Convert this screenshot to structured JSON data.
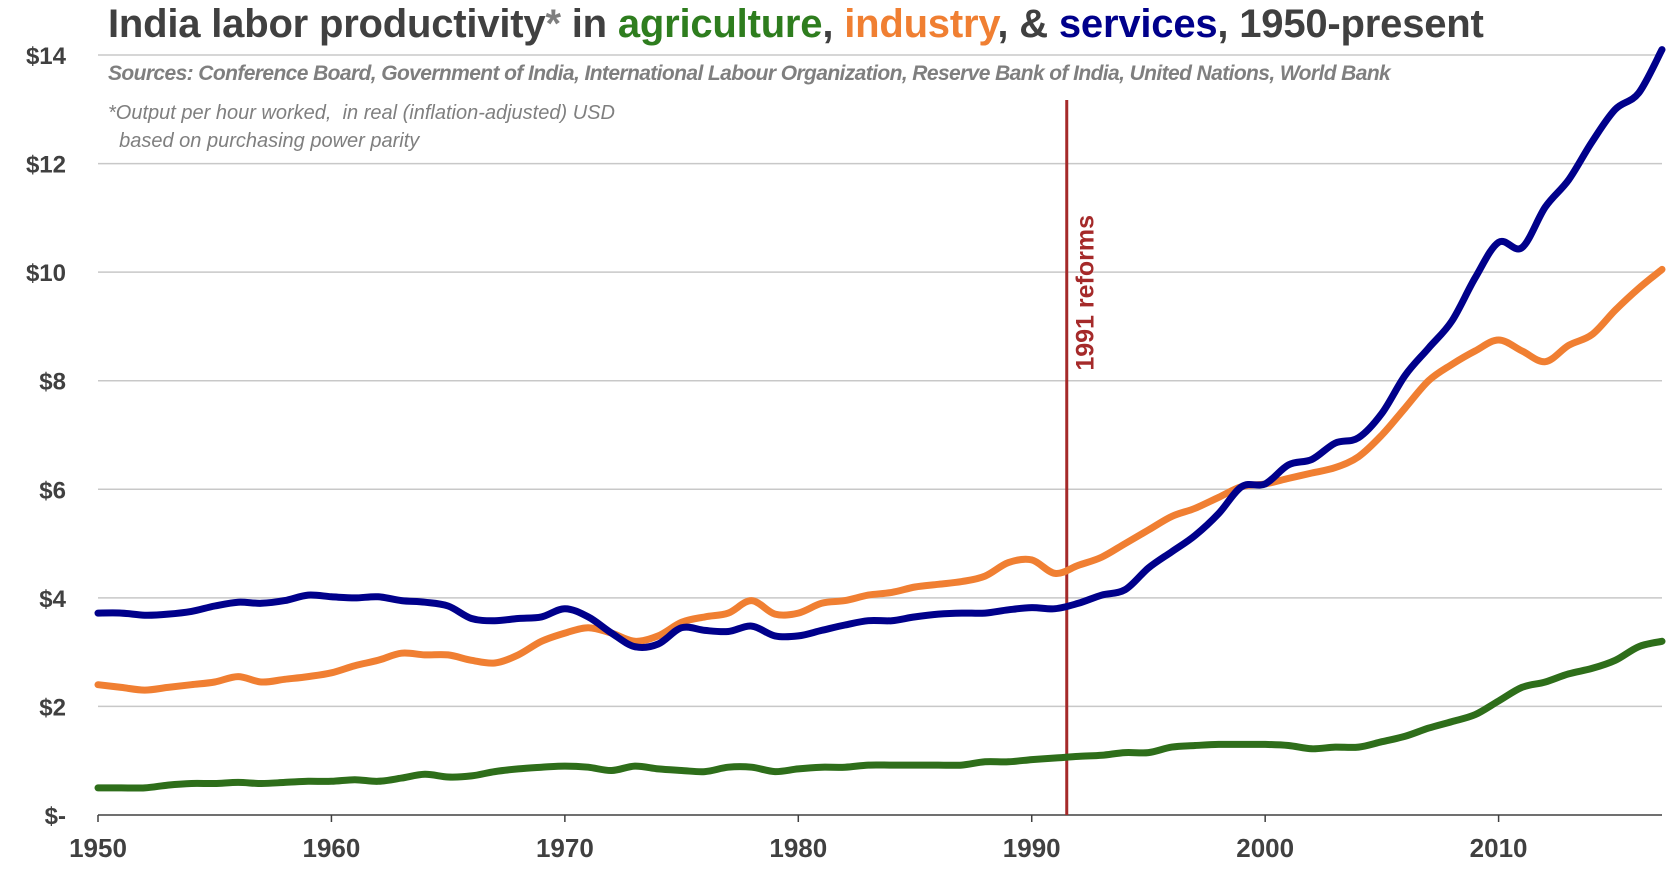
{
  "title": {
    "prefix": "India labor productivity",
    "star": "*",
    "in": " in ",
    "agriculture": "agriculture",
    "comma1": ", ",
    "industry": "industry",
    "amp": ", & ",
    "services": "services",
    "suffix": ", 1950-present"
  },
  "sources": "Sources: Conference Board, Government of India, International Labour Organization, Reserve Bank of India, United Nations, World Bank",
  "footnote": "*Output per hour worked,  in real (inflation-adjusted) USD\n  based on purchasing power parity",
  "colors": {
    "agriculture": "#2e6e1a",
    "industry": "#f07f32",
    "services": "#00008b",
    "reform_line": "#a52a2a",
    "grid": "#c8c8c8",
    "axis": "#404040"
  },
  "chart_data": {
    "type": "line",
    "xlim": [
      1950,
      2017
    ],
    "ylim": [
      0,
      14
    ],
    "x_ticks": [
      1950,
      1960,
      1970,
      1980,
      1990,
      2000,
      2010
    ],
    "y_ticks": [
      0,
      2,
      4,
      6,
      8,
      10,
      12,
      14
    ],
    "y_tick_labels": [
      "$-",
      "$2",
      "$4",
      "$6",
      "$8",
      "$10",
      "$12",
      "$14"
    ],
    "grid": "horizontal",
    "x": [
      1950,
      1951,
      1952,
      1953,
      1954,
      1955,
      1956,
      1957,
      1958,
      1959,
      1960,
      1961,
      1962,
      1963,
      1964,
      1965,
      1966,
      1967,
      1968,
      1969,
      1970,
      1971,
      1972,
      1973,
      1974,
      1975,
      1976,
      1977,
      1978,
      1979,
      1980,
      1981,
      1982,
      1983,
      1984,
      1985,
      1986,
      1987,
      1988,
      1989,
      1990,
      1991,
      1992,
      1993,
      1994,
      1995,
      1996,
      1997,
      1998,
      1999,
      2000,
      2001,
      2002,
      2003,
      2004,
      2005,
      2006,
      2007,
      2008,
      2009,
      2010,
      2011,
      2012,
      2013,
      2014,
      2015,
      2016,
      2017
    ],
    "series": [
      {
        "key": "agriculture",
        "values": [
          0.5,
          0.5,
          0.5,
          0.55,
          0.58,
          0.58,
          0.6,
          0.58,
          0.6,
          0.62,
          0.62,
          0.65,
          0.62,
          0.68,
          0.75,
          0.7,
          0.72,
          0.8,
          0.85,
          0.88,
          0.9,
          0.88,
          0.82,
          0.9,
          0.85,
          0.82,
          0.8,
          0.88,
          0.88,
          0.8,
          0.85,
          0.88,
          0.88,
          0.92,
          0.92,
          0.92,
          0.92,
          0.92,
          0.98,
          0.98,
          1.02,
          1.05,
          1.08,
          1.1,
          1.15,
          1.15,
          1.25,
          1.28,
          1.3,
          1.3,
          1.3,
          1.28,
          1.22,
          1.25,
          1.25,
          1.35,
          1.45,
          1.6,
          1.72,
          1.85,
          2.1,
          2.35,
          2.45,
          2.6,
          2.7,
          2.85,
          3.1,
          3.2
        ]
      },
      {
        "key": "industry",
        "values": [
          2.4,
          2.35,
          2.3,
          2.35,
          2.4,
          2.45,
          2.55,
          2.45,
          2.5,
          2.55,
          2.62,
          2.75,
          2.85,
          2.98,
          2.95,
          2.95,
          2.85,
          2.8,
          2.95,
          3.2,
          3.35,
          3.45,
          3.35,
          3.2,
          3.3,
          3.55,
          3.65,
          3.72,
          3.95,
          3.7,
          3.72,
          3.9,
          3.95,
          4.05,
          4.1,
          4.2,
          4.25,
          4.3,
          4.4,
          4.65,
          4.7,
          4.45,
          4.6,
          4.75,
          5.0,
          5.25,
          5.5,
          5.65,
          5.85,
          6.05,
          6.1,
          6.2,
          6.3,
          6.4,
          6.6,
          7.0,
          7.5,
          8.0,
          8.3,
          8.55,
          8.75,
          8.55,
          8.35,
          8.65,
          8.85,
          9.3,
          9.7,
          10.05
        ]
      },
      {
        "key": "services",
        "values": [
          3.72,
          3.72,
          3.68,
          3.7,
          3.75,
          3.85,
          3.92,
          3.9,
          3.95,
          4.05,
          4.02,
          4.0,
          4.02,
          3.95,
          3.92,
          3.85,
          3.62,
          3.58,
          3.62,
          3.65,
          3.8,
          3.65,
          3.35,
          3.1,
          3.15,
          3.45,
          3.4,
          3.38,
          3.48,
          3.3,
          3.3,
          3.4,
          3.5,
          3.58,
          3.58,
          3.65,
          3.7,
          3.72,
          3.72,
          3.78,
          3.82,
          3.8,
          3.9,
          4.05,
          4.15,
          4.55,
          4.85,
          5.15,
          5.55,
          6.05,
          6.1,
          6.45,
          6.55,
          6.85,
          6.95,
          7.4,
          8.1,
          8.6,
          9.1,
          9.9,
          10.55,
          10.45,
          11.2,
          11.7,
          12.4,
          13.0,
          13.3,
          14.1
        ]
      }
    ],
    "annotations": [
      {
        "x": 1991.5,
        "label": "1991 reforms"
      }
    ]
  }
}
